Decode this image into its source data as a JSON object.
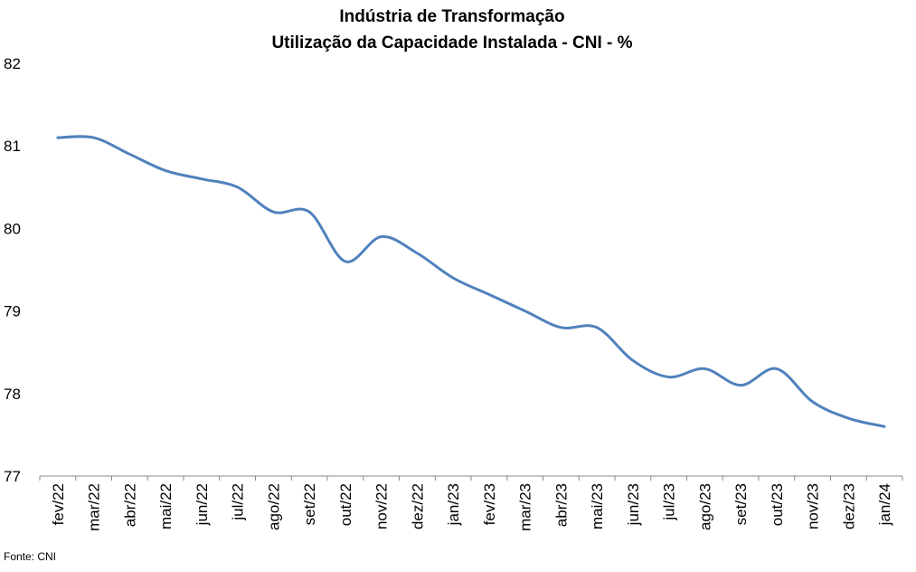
{
  "chart_data": {
    "type": "line",
    "title": "Indústria de Transformação",
    "subtitle": "Utilização da Capacidade Instalada - CNI - %",
    "categories": [
      "fev/22",
      "mar/22",
      "abr/22",
      "mai/22",
      "jun/22",
      "jul/22",
      "ago/22",
      "set/22",
      "out/22",
      "nov/22",
      "dez/22",
      "jan/23",
      "fev/23",
      "mar/23",
      "abr/23",
      "mai/23",
      "jun/23",
      "jul/23",
      "ago/23",
      "set/23",
      "out/23",
      "nov/23",
      "dez/23",
      "jan/24"
    ],
    "series": [
      {
        "values": [
          81.1,
          81.1,
          80.9,
          80.7,
          80.6,
          80.5,
          80.2,
          80.2,
          79.6,
          79.9,
          79.7,
          79.4,
          79.2,
          79.0,
          78.8,
          78.8,
          78.4,
          78.2,
          78.3,
          78.1,
          78.3,
          77.9,
          77.7,
          77.6
        ],
        "color": "#4F81BD"
      }
    ],
    "ylim": [
      77,
      82
    ],
    "yticks": [
      "77",
      "78",
      "79",
      "80",
      "81",
      "82"
    ],
    "grid": false,
    "legend": "none",
    "xlabel": "",
    "ylabel": ""
  },
  "source": "Fonte: CNI"
}
